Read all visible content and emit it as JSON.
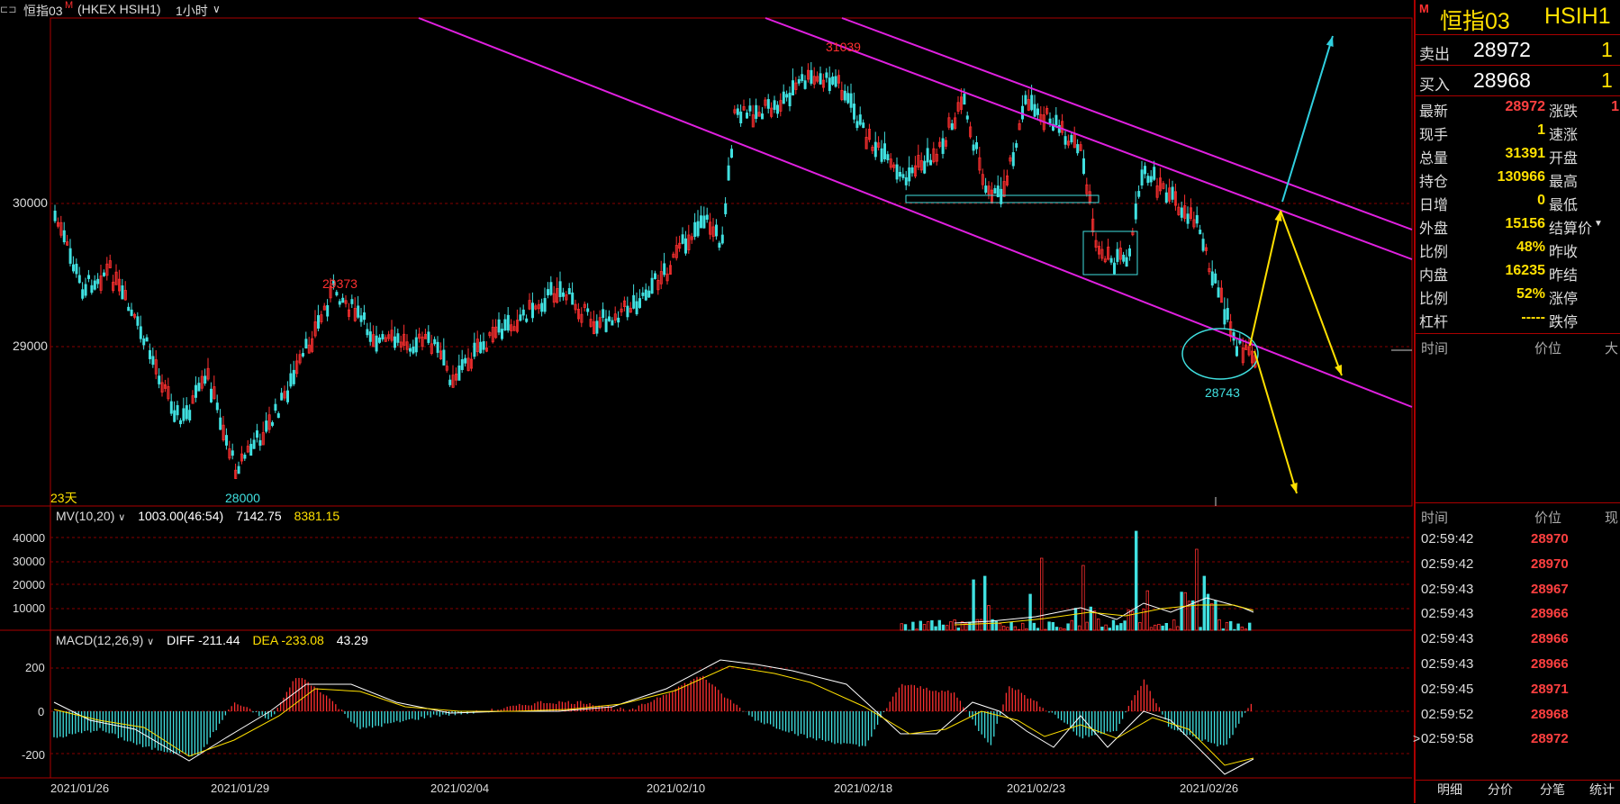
{
  "topbar": {
    "menu_icon": "double-line-icon",
    "symbol": "恒指03",
    "m_badge": "M",
    "exchange": "(HKEX HSIH1)",
    "period": "1小时",
    "chevron": "∨"
  },
  "main_chart": {
    "y_ticks": [
      "30000",
      "29000"
    ],
    "annotations": {
      "high1": "31039",
      "high2": "29373",
      "low1": "28000",
      "low2": "28743",
      "days": "23天"
    }
  },
  "volume_panel": {
    "title": "MV(10,20)",
    "chevron": "∨",
    "value1": "1003.00(46:54)",
    "value2": "7142.75",
    "value3": "8381.15",
    "y_ticks": [
      "40000",
      "30000",
      "20000",
      "10000"
    ]
  },
  "macd_panel": {
    "title": "MACD(12,26,9)",
    "chevron": "∨",
    "diff": "DIFF -211.44",
    "dea": "DEA -233.08",
    "macd": "43.29",
    "y_ticks": [
      "200",
      "0",
      "-200"
    ]
  },
  "x_axis": [
    "2021/01/26",
    "2021/01/29",
    "2021/02/04",
    "2021/02/10",
    "2021/02/18",
    "2021/02/23",
    "2021/02/26"
  ],
  "quote_panel": {
    "badge": "M",
    "name": "恒指03",
    "code": "HSIH1",
    "ask_label": "卖出",
    "ask_price": "28972",
    "ask_qty": "1",
    "bid_label": "买入",
    "bid_price": "28968",
    "bid_qty": "1",
    "rows": [
      {
        "l": "最新",
        "v": "28972",
        "c": "#ff4040",
        "l2": "涨跌",
        "v2": "1"
      },
      {
        "l": "现手",
        "v": "1",
        "c": "#ffe000",
        "l2": "速涨",
        "v2": ""
      },
      {
        "l": "总量",
        "v": "31391",
        "c": "#ffe000",
        "l2": "开盘",
        "v2": ""
      },
      {
        "l": "持仓",
        "v": "130966",
        "c": "#ffe000",
        "l2": "最高",
        "v2": ""
      },
      {
        "l": "日增",
        "v": "0",
        "c": "#ffe000",
        "l2": "最低",
        "v2": ""
      },
      {
        "l": "外盘",
        "v": "15156",
        "c": "#ffe000",
        "l2": "结算价",
        "v2": ""
      },
      {
        "l": "比例",
        "v": "48%",
        "c": "#ffe000",
        "l2": "昨收",
        "v2": ""
      },
      {
        "l": "内盘",
        "v": "16235",
        "c": "#ffe000",
        "l2": "昨结",
        "v2": ""
      },
      {
        "l": "比例",
        "v": "52%",
        "c": "#ffe000",
        "l2": "涨停",
        "v2": ""
      },
      {
        "l": "杠杆",
        "v": "-----",
        "c": "#ffe000",
        "l2": "跌停",
        "v2": ""
      }
    ],
    "detail_header": {
      "time": "时间",
      "price": "价位",
      "vol": "大"
    },
    "tick_header": {
      "time": "时间",
      "price": "价位",
      "vol": "现"
    },
    "ticks": [
      {
        "t": "02:59:42",
        "p": "28970"
      },
      {
        "t": "02:59:42",
        "p": "28970"
      },
      {
        "t": "02:59:43",
        "p": "28967"
      },
      {
        "t": "02:59:43",
        "p": "28966"
      },
      {
        "t": "02:59:43",
        "p": "28966"
      },
      {
        "t": "02:59:43",
        "p": "28966"
      },
      {
        "t": "02:59:45",
        "p": "28971"
      },
      {
        "t": "02:59:52",
        "p": "28968"
      },
      {
        "t": "02:59:58",
        "p": "28972"
      }
    ],
    "tabs": [
      "明细",
      "分价",
      "分笔",
      "统计"
    ],
    "dropdown_icon": "triangle-down-icon",
    "selected_tick_marker": ">"
  }
}
